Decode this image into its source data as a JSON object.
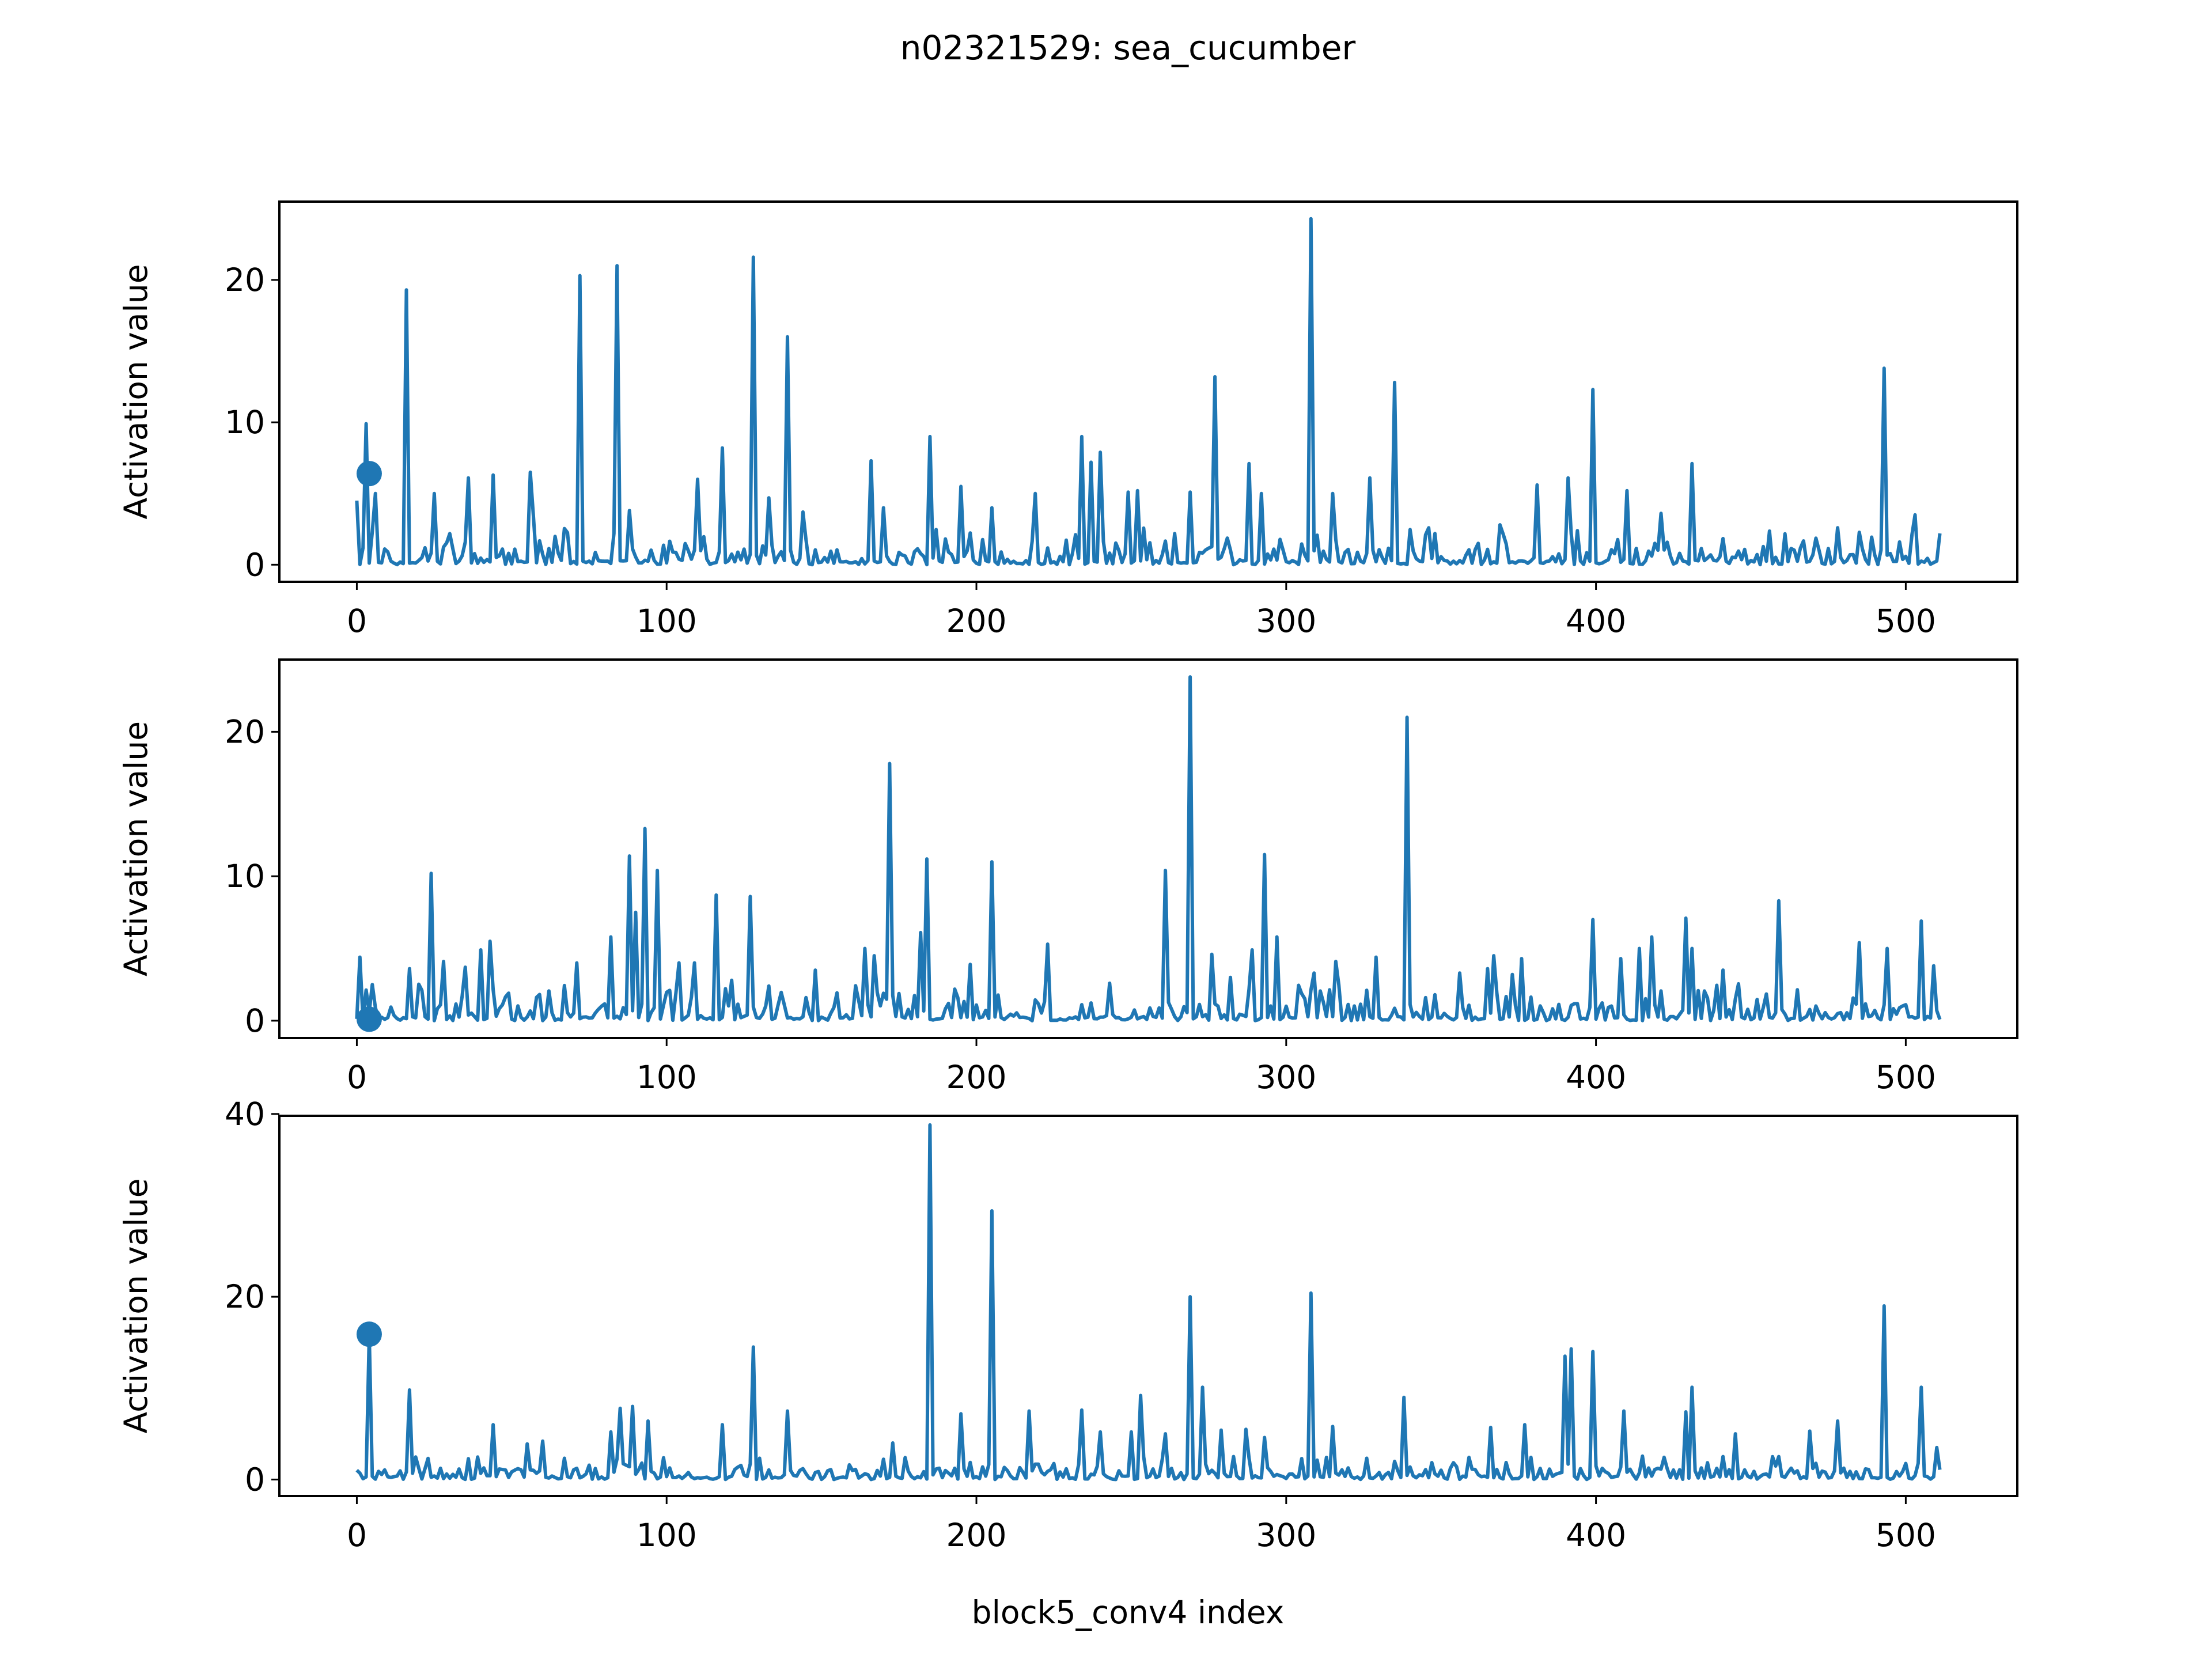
{
  "figure": {
    "title": "n02321529: sea_cucumber",
    "xlabel": "block5_conv4 index"
  },
  "colors": {
    "line": "#1f77b4",
    "axes": "#000000",
    "background": "#ffffff"
  },
  "chart_data": [
    {
      "type": "line",
      "ylabel": "Activation value",
      "xlim": [
        -25,
        536
      ],
      "ylim": [
        -1.2,
        25.5
      ],
      "xticks": [
        0,
        100,
        200,
        300,
        400,
        500
      ],
      "yticks": [
        0,
        10,
        20
      ],
      "grid": false,
      "marker": {
        "x": 4,
        "y": 6.4
      },
      "base_level": 0.3,
      "peaks": [
        [
          0,
          4.5
        ],
        [
          3,
          9.9
        ],
        [
          6,
          5.0
        ],
        [
          16,
          19.3
        ],
        [
          25,
          5.0
        ],
        [
          36,
          6.1
        ],
        [
          44,
          6.3
        ],
        [
          56,
          6.5
        ],
        [
          57,
          3.4
        ],
        [
          72,
          20.3
        ],
        [
          84,
          21.0
        ],
        [
          88,
          3.8
        ],
        [
          110,
          6.0
        ],
        [
          118,
          8.2
        ],
        [
          128,
          21.6
        ],
        [
          133,
          4.7
        ],
        [
          139,
          16.0
        ],
        [
          144,
          3.7
        ],
        [
          166,
          7.3
        ],
        [
          170,
          4.0
        ],
        [
          185,
          9.0
        ],
        [
          195,
          5.5
        ],
        [
          205,
          4.0
        ],
        [
          219,
          5.0
        ],
        [
          234,
          9.0
        ],
        [
          237,
          7.2
        ],
        [
          240,
          7.9
        ],
        [
          249,
          5.1
        ],
        [
          252,
          5.2
        ],
        [
          269,
          5.1
        ],
        [
          277,
          13.2
        ],
        [
          288,
          7.1
        ],
        [
          292,
          5.0
        ],
        [
          308,
          24.3
        ],
        [
          315,
          5.0
        ],
        [
          327,
          6.1
        ],
        [
          335,
          12.8
        ],
        [
          369,
          2.8
        ],
        [
          381,
          5.6
        ],
        [
          391,
          6.1
        ],
        [
          399,
          12.3
        ],
        [
          410,
          5.2
        ],
        [
          421,
          3.6
        ],
        [
          431,
          7.1
        ],
        [
          493,
          13.8
        ],
        [
          503,
          3.5
        ],
        [
          511,
          2.2
        ]
      ]
    },
    {
      "type": "line",
      "ylabel": "Activation value",
      "xlim": [
        -25,
        536
      ],
      "ylim": [
        -1.2,
        25.0
      ],
      "xticks": [
        0,
        100,
        200,
        300,
        400,
        500
      ],
      "yticks": [
        0,
        10,
        20
      ],
      "grid": false,
      "marker": {
        "x": 4,
        "y": 0.1
      },
      "base_level": 0.3,
      "peaks": [
        [
          1,
          4.4
        ],
        [
          5,
          2.5
        ],
        [
          17,
          3.6
        ],
        [
          24,
          10.2
        ],
        [
          28,
          4.1
        ],
        [
          35,
          3.7
        ],
        [
          40,
          4.9
        ],
        [
          43,
          5.5
        ],
        [
          71,
          4.0
        ],
        [
          82,
          5.8
        ],
        [
          88,
          11.4
        ],
        [
          90,
          7.5
        ],
        [
          93,
          13.3
        ],
        [
          97,
          10.4
        ],
        [
          104,
          4.0
        ],
        [
          109,
          4.0
        ],
        [
          116,
          8.7
        ],
        [
          121,
          2.8
        ],
        [
          127,
          8.6
        ],
        [
          133,
          2.4
        ],
        [
          148,
          3.5
        ],
        [
          164,
          5.0
        ],
        [
          167,
          4.5
        ],
        [
          172,
          17.8
        ],
        [
          182,
          6.1
        ],
        [
          184,
          11.2
        ],
        [
          198,
          3.9
        ],
        [
          205,
          11.0
        ],
        [
          223,
          5.3
        ],
        [
          261,
          10.4
        ],
        [
          269,
          23.8
        ],
        [
          276,
          4.6
        ],
        [
          282,
          3.0
        ],
        [
          289,
          4.9
        ],
        [
          293,
          11.5
        ],
        [
          297,
          5.8
        ],
        [
          309,
          3.3
        ],
        [
          316,
          4.1
        ],
        [
          329,
          4.4
        ],
        [
          339,
          21.0
        ],
        [
          356,
          3.3
        ],
        [
          365,
          3.6
        ],
        [
          367,
          4.5
        ],
        [
          373,
          3.2
        ],
        [
          376,
          4.3
        ],
        [
          399,
          7.0
        ],
        [
          408,
          4.3
        ],
        [
          414,
          5.0
        ],
        [
          418,
          5.8
        ],
        [
          429,
          7.1
        ],
        [
          431,
          5.0
        ],
        [
          441,
          3.5
        ],
        [
          459,
          8.3
        ],
        [
          485,
          5.4
        ],
        [
          494,
          5.0
        ],
        [
          505,
          6.9
        ],
        [
          509,
          3.8
        ]
      ]
    },
    {
      "type": "line",
      "ylabel": "Activation value",
      "xlim": [
        -25,
        536
      ],
      "ylim": [
        -1.8,
        39.8
      ],
      "xticks": [
        0,
        100,
        200,
        300,
        400,
        500
      ],
      "yticks": [
        0,
        20,
        40
      ],
      "grid": false,
      "marker": {
        "x": 4,
        "y": 15.9
      },
      "base_level": 0.4,
      "peaks": [
        [
          4,
          15.9
        ],
        [
          17,
          9.8
        ],
        [
          44,
          6.0
        ],
        [
          55,
          3.9
        ],
        [
          60,
          4.2
        ],
        [
          82,
          5.2
        ],
        [
          85,
          7.8
        ],
        [
          89,
          8.0
        ],
        [
          94,
          6.4
        ],
        [
          118,
          6.0
        ],
        [
          128,
          14.5
        ],
        [
          139,
          7.5
        ],
        [
          173,
          4.0
        ],
        [
          185,
          38.8
        ],
        [
          195,
          7.2
        ],
        [
          205,
          29.4
        ],
        [
          217,
          7.5
        ],
        [
          234,
          7.6
        ],
        [
          240,
          5.2
        ],
        [
          250,
          5.2
        ],
        [
          253,
          9.2
        ],
        [
          261,
          5.0
        ],
        [
          269,
          20.0
        ],
        [
          273,
          10.1
        ],
        [
          279,
          5.4
        ],
        [
          287,
          5.5
        ],
        [
          293,
          4.6
        ],
        [
          308,
          20.4
        ],
        [
          315,
          5.8
        ],
        [
          338,
          9.0
        ],
        [
          366,
          5.7
        ],
        [
          377,
          6.0
        ],
        [
          390,
          13.5
        ],
        [
          392,
          14.3
        ],
        [
          399,
          14.0
        ],
        [
          409,
          7.5
        ],
        [
          429,
          7.4
        ],
        [
          431,
          10.1
        ],
        [
          445,
          5.0
        ],
        [
          469,
          5.3
        ],
        [
          478,
          6.4
        ],
        [
          493,
          19.0
        ],
        [
          505,
          10.1
        ],
        [
          510,
          3.5
        ]
      ]
    }
  ]
}
